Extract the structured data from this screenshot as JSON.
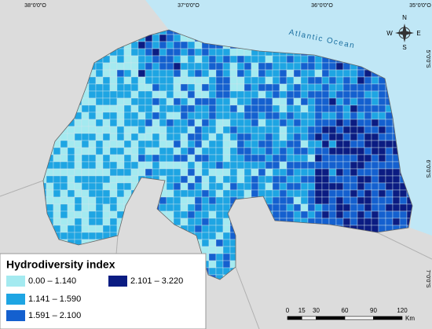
{
  "map": {
    "ocean_label": "Atlantic Ocean",
    "compass": {
      "n": "N",
      "s": "S",
      "e": "E",
      "w": "W"
    },
    "longitudes": [
      "38°0'0\"O",
      "37°0'0\"O",
      "36°0'0\"O",
      "35°0'0\"O"
    ],
    "latitudes": [
      "5°0'0\"S",
      "6°0'0\"S",
      "7°0'0\"S"
    ],
    "legend": {
      "title": "Hydrodiversity index",
      "items": [
        {
          "label": "0.00 – 1.140",
          "color": "#a4eaf0"
        },
        {
          "label": "1.141 – 1.590",
          "color": "#1ea5e3"
        },
        {
          "label": "1.591 – 2.100",
          "color": "#1460cf"
        },
        {
          "label": "2.101 – 3.220",
          "color": "#0b1c82"
        }
      ]
    },
    "scale": {
      "ticks": [
        0,
        15,
        30,
        60,
        90,
        120
      ],
      "unit": "Km"
    }
  }
}
